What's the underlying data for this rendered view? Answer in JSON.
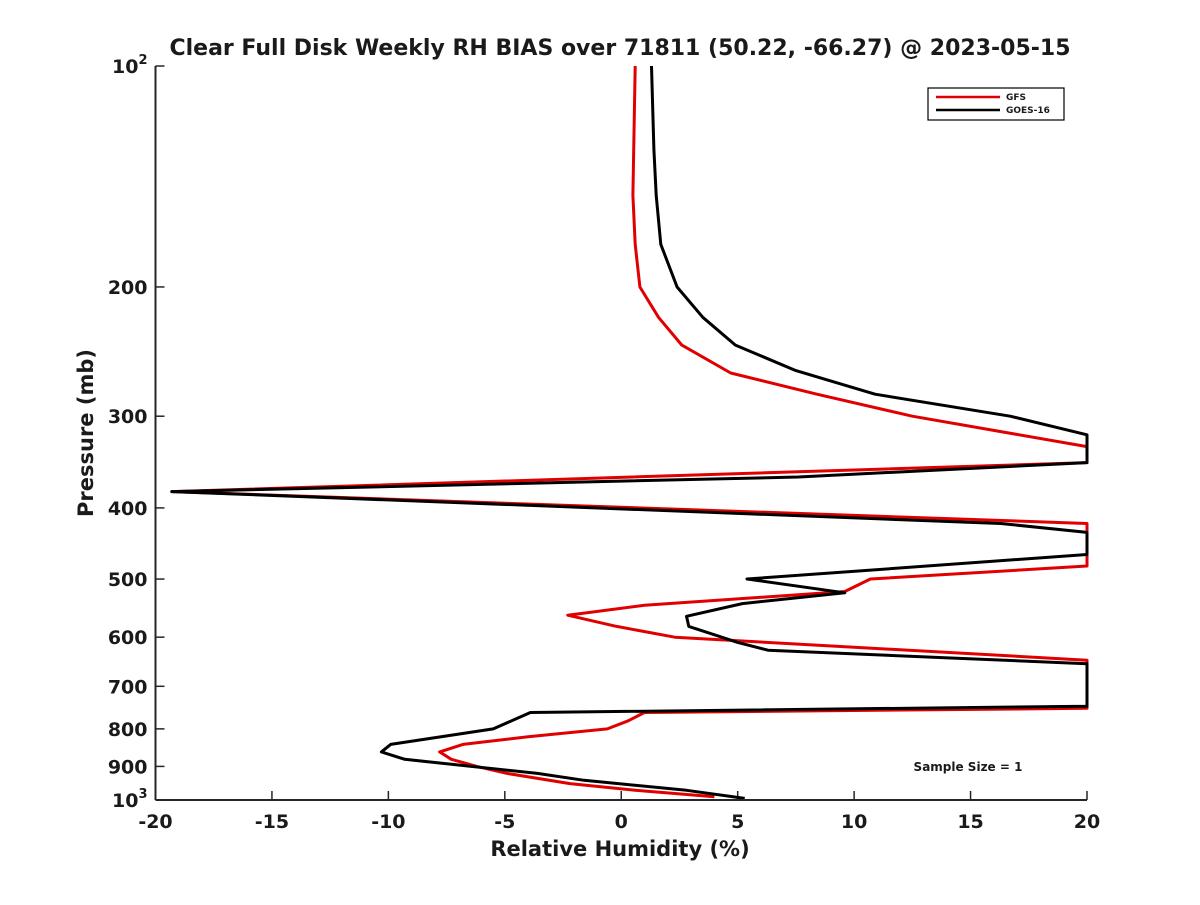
{
  "chart_data": {
    "type": "line",
    "title": "Clear Full Disk Weekly RH BIAS over 71811 (50.22, -66.27) @ 2023-05-15",
    "xlabel": "Relative Humidity (%)",
    "ylabel": "Pressure (mb)",
    "xlim": [
      -20,
      20
    ],
    "ylim": [
      100,
      1000
    ],
    "y_scale": "log",
    "y_reversed": true,
    "grid": false,
    "legend_position": "top-right",
    "x_ticks": [
      -20,
      -15,
      -10,
      -5,
      0,
      5,
      10,
      15,
      20
    ],
    "x_tick_labels": [
      "-20",
      "-15",
      "-10",
      "-5",
      "0",
      "5",
      "10",
      "15",
      "20"
    ],
    "y_ticks": [
      100,
      200,
      300,
      400,
      500,
      600,
      700,
      800,
      900,
      1000
    ],
    "y_tick_labels": [
      {
        "base": "10",
        "exp": "2"
      },
      {
        "base": "200",
        "exp": ""
      },
      {
        "base": "300",
        "exp": ""
      },
      {
        "base": "400",
        "exp": ""
      },
      {
        "base": "500",
        "exp": ""
      },
      {
        "base": "600",
        "exp": ""
      },
      {
        "base": "700",
        "exp": ""
      },
      {
        "base": "800",
        "exp": ""
      },
      {
        "base": "900",
        "exp": ""
      },
      {
        "base": "10",
        "exp": "3"
      }
    ],
    "annotation": "Sample Size = 1",
    "series": [
      {
        "name": "GFS",
        "color": "#e00000",
        "points": [
          [
            0.6,
            100
          ],
          [
            0.5,
            150
          ],
          [
            0.6,
            175
          ],
          [
            0.8,
            200
          ],
          [
            1.6,
            220
          ],
          [
            2.6,
            240
          ],
          [
            4.7,
            262
          ],
          [
            8.4,
            280
          ],
          [
            12.5,
            300
          ],
          [
            20,
            330
          ],
          [
            20,
            347
          ],
          [
            -19.3,
            380
          ],
          [
            20,
            420
          ],
          [
            20,
            480
          ],
          [
            10.7,
            500
          ],
          [
            9.6,
            520
          ],
          [
            1,
            543
          ],
          [
            -2.3,
            560
          ],
          [
            -0.2,
            580
          ],
          [
            2.3,
            600
          ],
          [
            20,
            645
          ],
          [
            20,
            750
          ],
          [
            1,
            760
          ],
          [
            0.3,
            780
          ],
          [
            -0.6,
            800
          ],
          [
            -4,
            820
          ],
          [
            -6.8,
            840
          ],
          [
            -7.8,
            860
          ],
          [
            -7.3,
            880
          ],
          [
            -6.2,
            900
          ],
          [
            -4.9,
            920
          ],
          [
            -2.2,
            950
          ],
          [
            0.6,
            970
          ],
          [
            4,
            990
          ]
        ]
      },
      {
        "name": "GOES-16",
        "color": "#000000",
        "points": [
          [
            1.3,
            100
          ],
          [
            1.4,
            130
          ],
          [
            1.5,
            150
          ],
          [
            1.7,
            175
          ],
          [
            2.4,
            200
          ],
          [
            3.5,
            220
          ],
          [
            4.9,
            240
          ],
          [
            7.5,
            260
          ],
          [
            10.9,
            280
          ],
          [
            16.7,
            300
          ],
          [
            20,
            318
          ],
          [
            20,
            347
          ],
          [
            7.6,
            363
          ],
          [
            -19.3,
            380
          ],
          [
            16.3,
            420
          ],
          [
            20,
            432
          ],
          [
            20,
            463
          ],
          [
            5.4,
            500
          ],
          [
            9.6,
            522
          ],
          [
            5.2,
            540
          ],
          [
            2.8,
            562
          ],
          [
            2.9,
            580
          ],
          [
            5,
            610
          ],
          [
            6.3,
            625
          ],
          [
            13.9,
            640
          ],
          [
            20,
            652
          ],
          [
            20,
            745
          ],
          [
            -3.9,
            760
          ],
          [
            -5.5,
            800
          ],
          [
            -9.9,
            840
          ],
          [
            -10.3,
            860
          ],
          [
            -9.3,
            880
          ],
          [
            -3.6,
            920
          ],
          [
            -1.6,
            940
          ],
          [
            2.8,
            970
          ],
          [
            5.3,
            995
          ]
        ]
      }
    ]
  }
}
